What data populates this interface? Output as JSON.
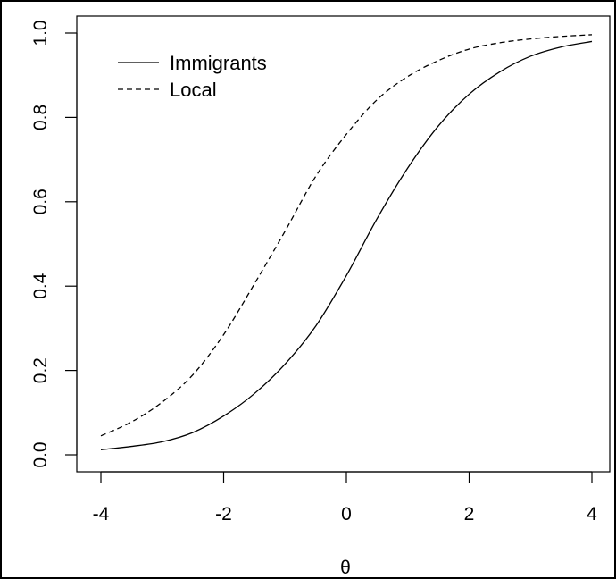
{
  "chart_data": {
    "type": "line",
    "title": "",
    "xlabel": "θ",
    "ylabel": "",
    "xlim": [
      -4,
      4
    ],
    "ylim": [
      0,
      1
    ],
    "grid": false,
    "legend_position": "top-left",
    "x_ticks": [
      -4,
      -2,
      0,
      2,
      4
    ],
    "x_tick_labels": [
      "-4",
      "-2",
      "0",
      "2",
      "4"
    ],
    "y_ticks": [
      0,
      0.2,
      0.4,
      0.6,
      0.8,
      1
    ],
    "y_tick_labels": [
      "0.0",
      "0.2",
      "0.4",
      "0.6",
      "0.8",
      "1.0"
    ],
    "x": [
      -4,
      -3.5,
      -3,
      -2.5,
      -2,
      -1.5,
      -1,
      -0.5,
      0,
      0.5,
      1,
      1.5,
      2,
      2.5,
      3,
      3.5,
      4
    ],
    "series": [
      {
        "name": "Immigrants",
        "line_style": "solid",
        "color": "#000000",
        "values": [
          0.012,
          0.02,
          0.031,
          0.053,
          0.092,
          0.145,
          0.215,
          0.305,
          0.425,
          0.56,
          0.68,
          0.78,
          0.855,
          0.908,
          0.945,
          0.967,
          0.98
        ]
      },
      {
        "name": "Local",
        "line_style": "dashed",
        "color": "#000000",
        "values": [
          0.045,
          0.078,
          0.125,
          0.19,
          0.285,
          0.405,
          0.53,
          0.66,
          0.76,
          0.842,
          0.897,
          0.935,
          0.962,
          0.977,
          0.986,
          0.992,
          0.996
        ]
      }
    ]
  }
}
